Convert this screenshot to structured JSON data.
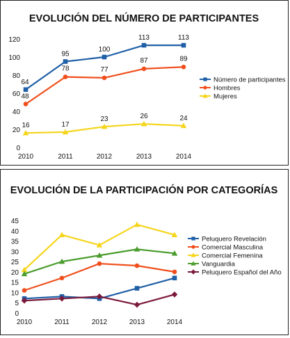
{
  "chart_data": [
    {
      "type": "line",
      "title": "EVOLUCIÓN DEL NÚMERO DE PARTICIPANTES",
      "categories": [
        "2010",
        "2011",
        "2012",
        "2013",
        "2014"
      ],
      "ylim": [
        0,
        120
      ],
      "yticks": [
        0,
        20,
        40,
        60,
        80,
        100,
        120
      ],
      "grid": false,
      "legend_position": "right",
      "data_labels": true,
      "series": [
        {
          "name": "Número de participantes",
          "color": "#1f5fa6",
          "marker": "square",
          "values": [
            64,
            95,
            100,
            113,
            113
          ]
        },
        {
          "name": "Hombres",
          "color": "#f04e1c",
          "marker": "circle",
          "values": [
            48,
            78,
            77,
            87,
            89
          ]
        },
        {
          "name": "Mujeres",
          "color": "#f5d51b",
          "marker": "triangle",
          "values": [
            16,
            17,
            23,
            26,
            24
          ]
        }
      ]
    },
    {
      "type": "line",
      "title": "EVOLUCIÓN DE LA PARTICIPACIÓN POR CATEGORÍAS",
      "categories": [
        "2010",
        "2011",
        "2012",
        "2013",
        "2014"
      ],
      "ylim": [
        0,
        45
      ],
      "yticks": [
        0,
        5,
        10,
        15,
        20,
        25,
        30,
        35,
        40,
        45
      ],
      "grid": false,
      "legend_position": "right",
      "data_labels": false,
      "series": [
        {
          "name": "Peluquero Revelación",
          "color": "#1f5fa6",
          "marker": "square",
          "values": [
            7,
            8,
            7,
            12,
            17
          ]
        },
        {
          "name": "Comercial Masculina",
          "color": "#f04e1c",
          "marker": "circle",
          "values": [
            11,
            17,
            24,
            23,
            20
          ]
        },
        {
          "name": "Comercial Femenina",
          "color": "#f5d51b",
          "marker": "triangle",
          "values": [
            21,
            38,
            33,
            43,
            38
          ]
        },
        {
          "name": "Vanguardia",
          "color": "#4a9c2d",
          "marker": "triangle",
          "values": [
            19,
            25,
            28,
            31,
            29
          ]
        },
        {
          "name": "Peluquero Español del Año",
          "color": "#7b1a3a",
          "marker": "diamond",
          "values": [
            6,
            7,
            8,
            4,
            9
          ]
        }
      ]
    }
  ]
}
